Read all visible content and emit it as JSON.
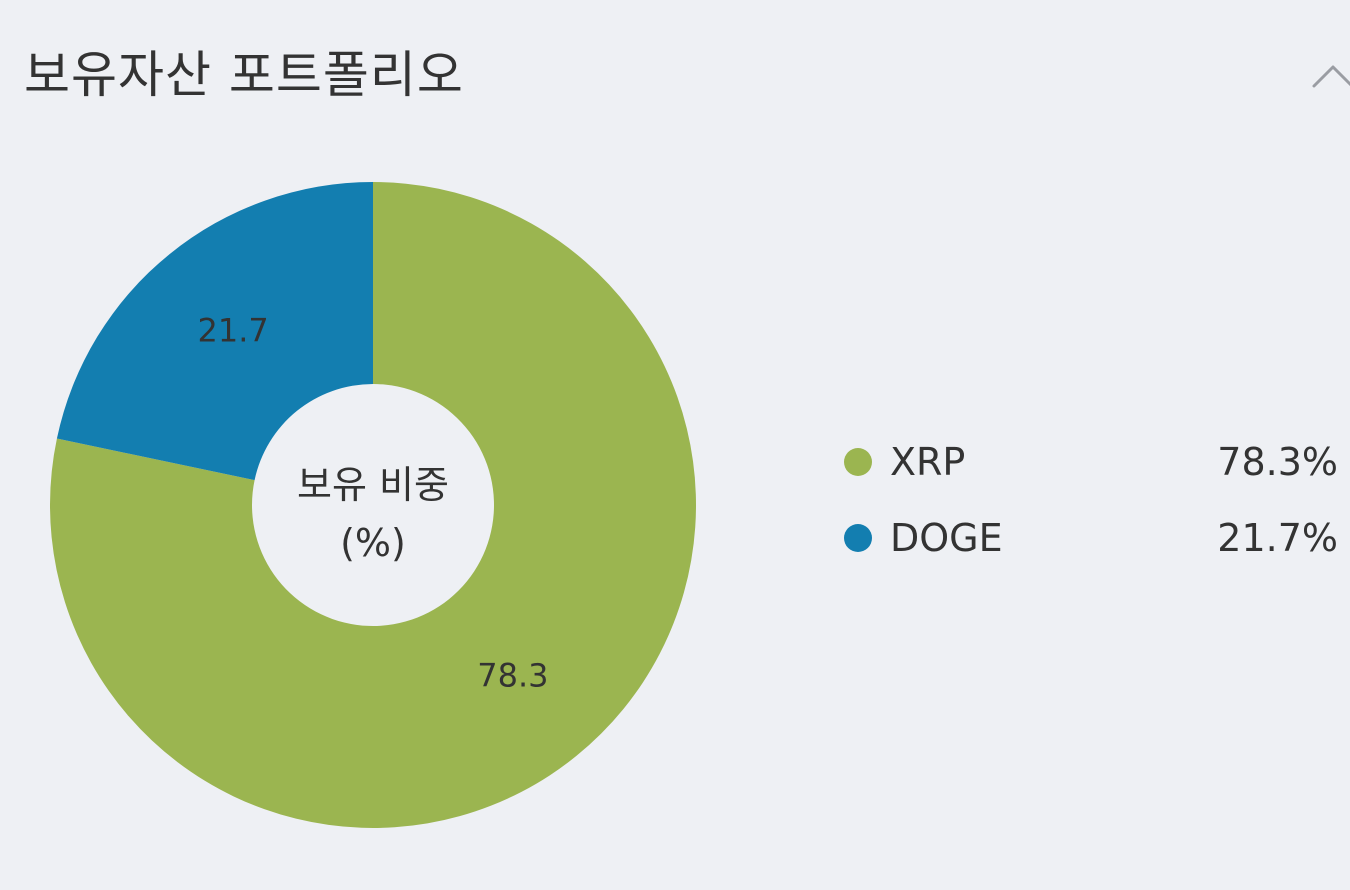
{
  "header": {
    "title": "보유자산 포트폴리오",
    "collapse_icon": "chevron-up-icon"
  },
  "chart_data": {
    "type": "pie",
    "variant": "donut",
    "center_label": [
      "보유 비중",
      "(%)"
    ],
    "categories": [
      "XRP",
      "DOGE"
    ],
    "values": [
      78.3,
      21.7
    ],
    "data_labels": [
      "78.3",
      "21.7"
    ],
    "colors": [
      "#9bb550",
      "#137eb0"
    ],
    "legend": {
      "placement": "right",
      "entries": [
        {
          "name": "XRP",
          "value": "78.3%",
          "color": "#9bb550"
        },
        {
          "name": "DOGE",
          "value": "21.7%",
          "color": "#137eb0"
        }
      ]
    }
  }
}
